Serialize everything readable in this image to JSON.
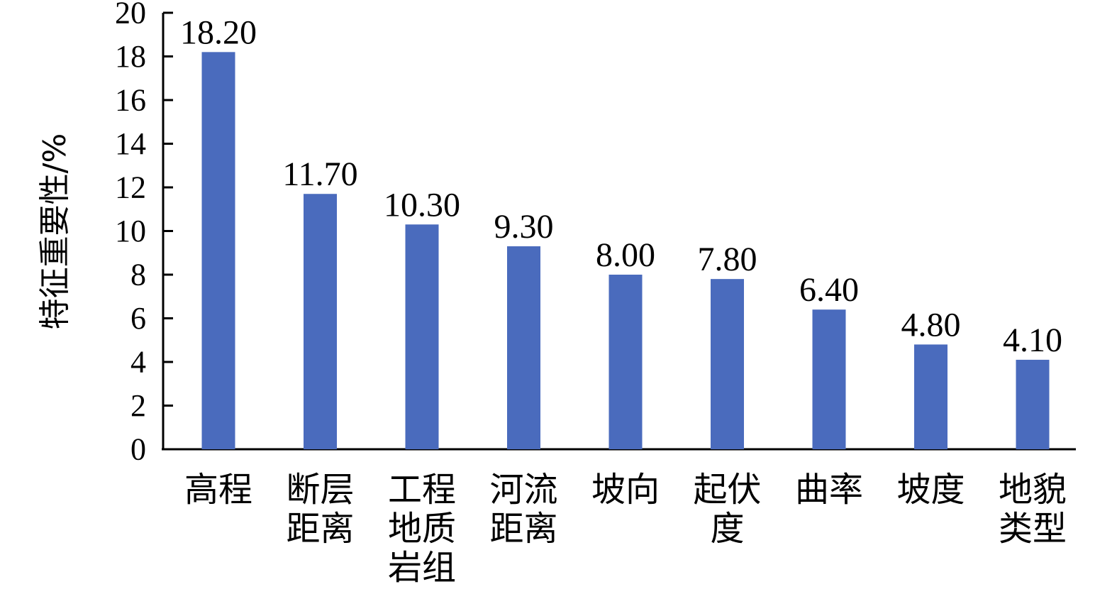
{
  "chart_data": {
    "type": "bar",
    "categories": [
      "高程",
      "断层距离",
      "工程地质岩组",
      "河流距离",
      "坡向",
      "起伏度",
      "曲率",
      "坡度",
      "地貌类型"
    ],
    "category_lines": [
      [
        "高程"
      ],
      [
        "断层",
        "距离"
      ],
      [
        "工程",
        "地质",
        "岩组"
      ],
      [
        "河流",
        "距离"
      ],
      [
        "坡向"
      ],
      [
        "起伏",
        "度"
      ],
      [
        "曲率"
      ],
      [
        "坡度"
      ],
      [
        "地貌",
        "类型"
      ]
    ],
    "values": [
      18.2,
      11.7,
      10.3,
      9.3,
      8.0,
      7.8,
      6.4,
      4.8,
      4.1
    ],
    "value_labels": [
      "18.20",
      "11.70",
      "10.30",
      "9.30",
      "8.00",
      "7.80",
      "6.40",
      "4.80",
      "4.10"
    ],
    "ylabel": "特征重要性/%",
    "ylim": [
      0,
      20
    ],
    "yticks": [
      0,
      2,
      4,
      6,
      8,
      10,
      12,
      14,
      16,
      18,
      20
    ],
    "grid": false,
    "bar_color": "#4a6bbd"
  }
}
